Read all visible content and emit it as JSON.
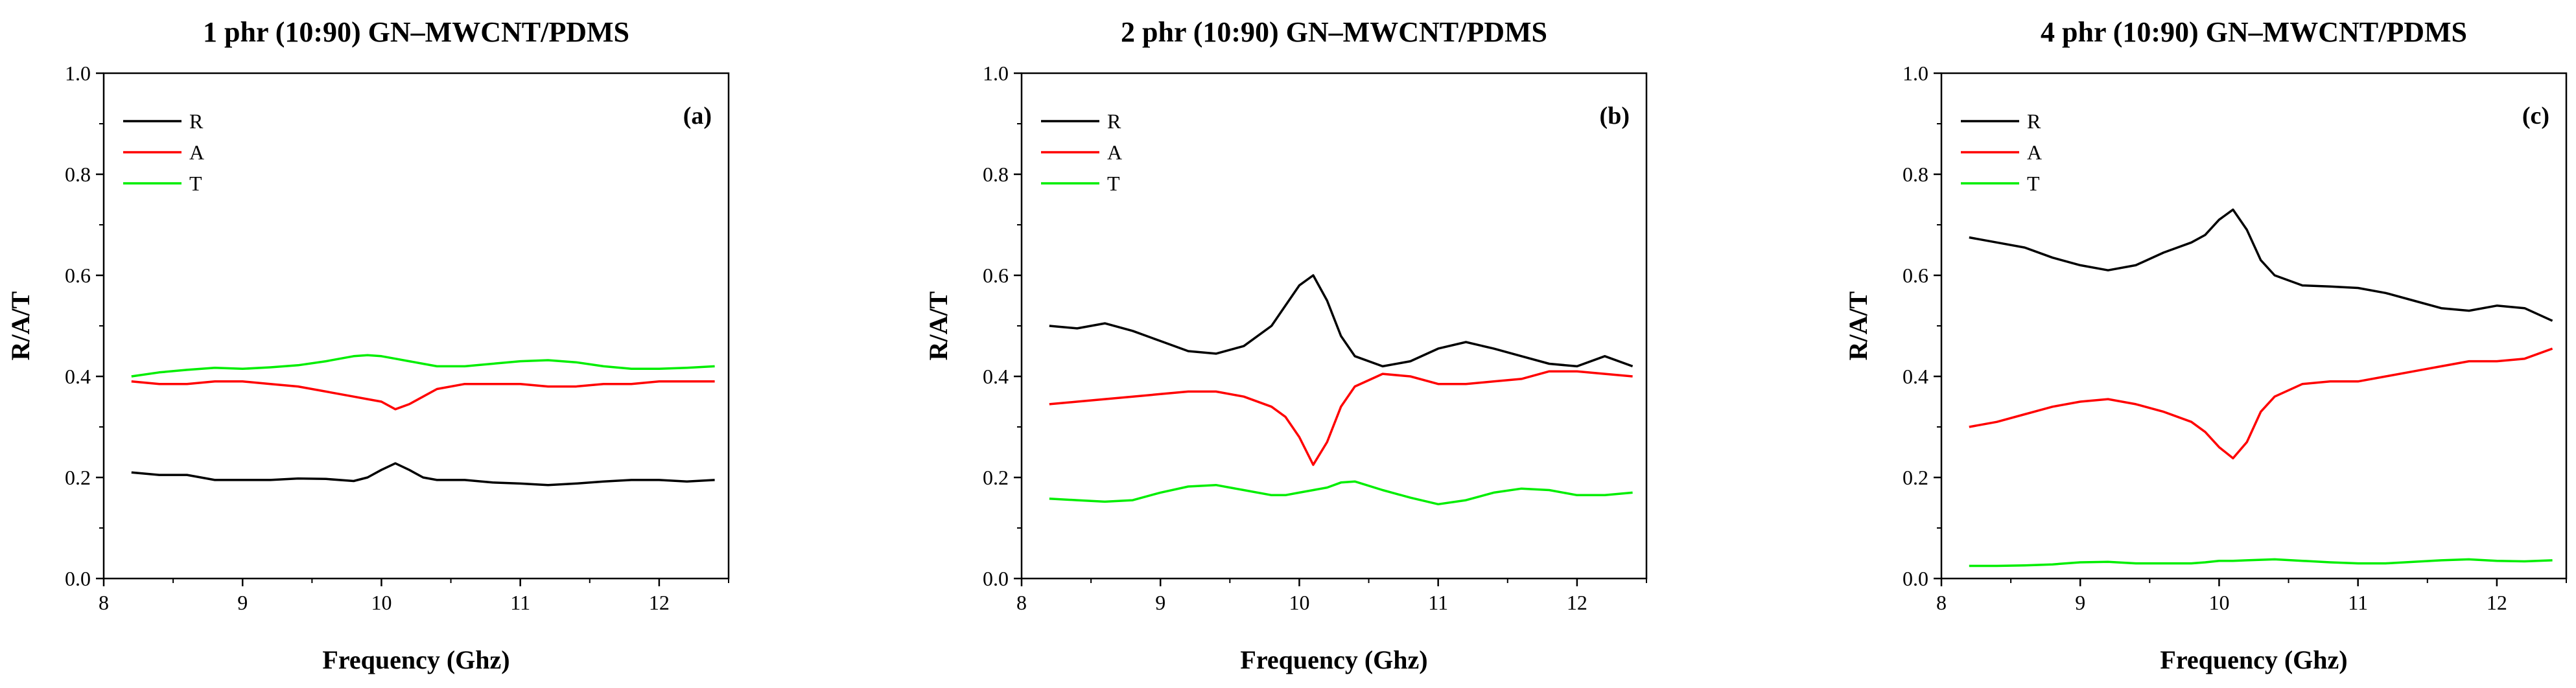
{
  "colors": {
    "R": "#000000",
    "A": "#ff0000",
    "T": "#00ee00"
  },
  "chart_data": [
    {
      "type": "line",
      "title": "1 phr (10:90) GN–MWCNT/PDMS",
      "tag": "(a)",
      "xlabel": "Frequency (Ghz)",
      "ylabel": "R/A/T",
      "xlim": [
        8,
        12.5
      ],
      "ylim": [
        0,
        1
      ],
      "xticks": [
        "8",
        "9",
        "10",
        "11",
        "12"
      ],
      "yticks": [
        "0.0",
        "0.2",
        "0.4",
        "0.6",
        "0.8",
        "1.0"
      ],
      "legend": [
        "R",
        "A",
        "T"
      ],
      "x": [
        8.2,
        8.4,
        8.6,
        8.8,
        9.0,
        9.2,
        9.4,
        9.6,
        9.8,
        9.9,
        10.0,
        10.1,
        10.2,
        10.3,
        10.4,
        10.6,
        10.8,
        11.0,
        11.2,
        11.4,
        11.6,
        11.8,
        12.0,
        12.2,
        12.4
      ],
      "series": [
        {
          "name": "R",
          "values": [
            0.21,
            0.205,
            0.205,
            0.195,
            0.195,
            0.195,
            0.198,
            0.197,
            0.193,
            0.2,
            0.215,
            0.228,
            0.215,
            0.2,
            0.195,
            0.195,
            0.19,
            0.188,
            0.185,
            0.188,
            0.192,
            0.195,
            0.195,
            0.192,
            0.195
          ]
        },
        {
          "name": "A",
          "values": [
            0.39,
            0.385,
            0.385,
            0.39,
            0.39,
            0.385,
            0.38,
            0.37,
            0.36,
            0.355,
            0.35,
            0.335,
            0.345,
            0.36,
            0.375,
            0.385,
            0.385,
            0.385,
            0.38,
            0.38,
            0.385,
            0.385,
            0.39,
            0.39,
            0.39
          ]
        },
        {
          "name": "T",
          "values": [
            0.4,
            0.408,
            0.413,
            0.417,
            0.415,
            0.418,
            0.422,
            0.43,
            0.44,
            0.442,
            0.44,
            0.435,
            0.43,
            0.425,
            0.42,
            0.42,
            0.425,
            0.43,
            0.432,
            0.428,
            0.42,
            0.415,
            0.415,
            0.417,
            0.42
          ]
        }
      ]
    },
    {
      "type": "line",
      "title": "2 phr (10:90) GN–MWCNT/PDMS",
      "tag": "(b)",
      "xlabel": "Frequency (Ghz)",
      "ylabel": "R/A/T",
      "xlim": [
        8,
        12.5
      ],
      "ylim": [
        0,
        1
      ],
      "xticks": [
        "8",
        "9",
        "10",
        "11",
        "12"
      ],
      "yticks": [
        "0.0",
        "0.2",
        "0.4",
        "0.6",
        "0.8",
        "1.0"
      ],
      "legend": [
        "R",
        "A",
        "T"
      ],
      "x": [
        8.2,
        8.4,
        8.6,
        8.8,
        9.0,
        9.2,
        9.4,
        9.6,
        9.8,
        9.9,
        10.0,
        10.1,
        10.2,
        10.3,
        10.4,
        10.6,
        10.8,
        11.0,
        11.2,
        11.4,
        11.6,
        11.8,
        12.0,
        12.2,
        12.4
      ],
      "series": [
        {
          "name": "R",
          "values": [
            0.5,
            0.495,
            0.505,
            0.49,
            0.47,
            0.45,
            0.445,
            0.46,
            0.5,
            0.54,
            0.58,
            0.6,
            0.55,
            0.48,
            0.44,
            0.42,
            0.43,
            0.455,
            0.468,
            0.455,
            0.44,
            0.425,
            0.42,
            0.44,
            0.42
          ]
        },
        {
          "name": "A",
          "values": [
            0.345,
            0.35,
            0.355,
            0.36,
            0.365,
            0.37,
            0.37,
            0.36,
            0.34,
            0.32,
            0.28,
            0.225,
            0.27,
            0.34,
            0.38,
            0.405,
            0.4,
            0.385,
            0.385,
            0.39,
            0.395,
            0.41,
            0.41,
            0.405,
            0.4
          ]
        },
        {
          "name": "T",
          "values": [
            0.158,
            0.155,
            0.152,
            0.155,
            0.17,
            0.182,
            0.185,
            0.175,
            0.165,
            0.165,
            0.17,
            0.175,
            0.18,
            0.19,
            0.192,
            0.175,
            0.16,
            0.147,
            0.155,
            0.17,
            0.178,
            0.175,
            0.165,
            0.165,
            0.17
          ]
        }
      ]
    },
    {
      "type": "line",
      "title": "4 phr (10:90) GN–MWCNT/PDMS",
      "tag": "(c)",
      "xlabel": "Frequency (Ghz)",
      "ylabel": "R/A/T",
      "xlim": [
        8,
        12.5
      ],
      "ylim": [
        0,
        1
      ],
      "xticks": [
        "8",
        "9",
        "10",
        "11",
        "12"
      ],
      "yticks": [
        "0.0",
        "0.2",
        "0.4",
        "0.6",
        "0.8",
        "1.0"
      ],
      "legend": [
        "R",
        "A",
        "T"
      ],
      "x": [
        8.2,
        8.4,
        8.6,
        8.8,
        9.0,
        9.2,
        9.4,
        9.6,
        9.8,
        9.9,
        10.0,
        10.1,
        10.2,
        10.3,
        10.4,
        10.6,
        10.8,
        11.0,
        11.2,
        11.4,
        11.6,
        11.8,
        12.0,
        12.2,
        12.4
      ],
      "series": [
        {
          "name": "R",
          "values": [
            0.675,
            0.665,
            0.655,
            0.635,
            0.62,
            0.61,
            0.62,
            0.645,
            0.665,
            0.68,
            0.71,
            0.73,
            0.69,
            0.63,
            0.6,
            0.58,
            0.578,
            0.575,
            0.565,
            0.55,
            0.535,
            0.53,
            0.54,
            0.535,
            0.51
          ]
        },
        {
          "name": "A",
          "values": [
            0.3,
            0.31,
            0.325,
            0.34,
            0.35,
            0.355,
            0.345,
            0.33,
            0.31,
            0.29,
            0.26,
            0.238,
            0.27,
            0.33,
            0.36,
            0.385,
            0.39,
            0.39,
            0.4,
            0.41,
            0.42,
            0.43,
            0.43,
            0.435,
            0.455
          ]
        },
        {
          "name": "T",
          "values": [
            0.025,
            0.025,
            0.026,
            0.028,
            0.032,
            0.033,
            0.03,
            0.03,
            0.03,
            0.032,
            0.035,
            0.035,
            0.036,
            0.037,
            0.038,
            0.035,
            0.032,
            0.03,
            0.03,
            0.033,
            0.036,
            0.038,
            0.035,
            0.034,
            0.036
          ]
        }
      ]
    }
  ]
}
